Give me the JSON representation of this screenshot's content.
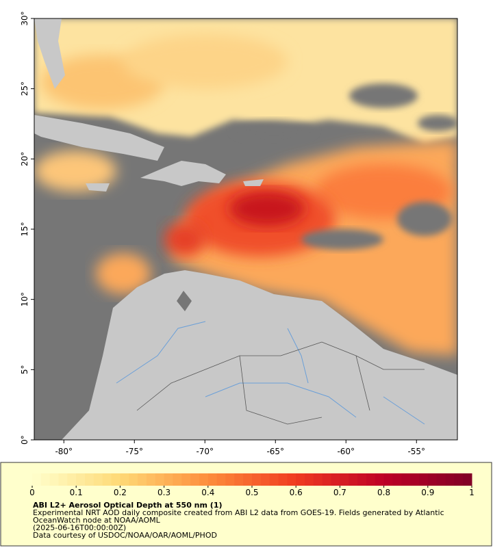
{
  "map": {
    "xlim": [
      -82.1,
      -52.1
    ],
    "ylim": [
      0,
      30
    ],
    "xticks": [
      {
        "value": -80,
        "label": "-80°"
      },
      {
        "value": -75,
        "label": "-75°"
      },
      {
        "value": -70,
        "label": "-70°"
      },
      {
        "value": -65,
        "label": "-65°"
      },
      {
        "value": -60,
        "label": "-60°"
      },
      {
        "value": -55,
        "label": "-55°"
      }
    ],
    "yticks": [
      {
        "value": 0,
        "label": "0°"
      },
      {
        "value": 5,
        "label": "5°"
      },
      {
        "value": 10,
        "label": "10°"
      },
      {
        "value": 15,
        "label": "15°"
      },
      {
        "value": 20,
        "label": "20°"
      },
      {
        "value": 25,
        "label": "25°"
      },
      {
        "value": 30,
        "label": "30°"
      }
    ]
  },
  "colorbar": {
    "lim": [
      0,
      1
    ],
    "ticks": [
      0,
      0.1,
      0.2,
      0.3,
      0.4,
      0.5,
      0.6,
      0.7,
      0.8,
      0.9,
      1
    ]
  },
  "caption": {
    "title": "ABI L2+ Aerosol Optical Depth at 550 nm (1)",
    "lines": [
      "Experimental NRT AOD daily composite created from ABI L2 data from GOES-19. Fields generated by Atlantic",
      "OceanWatch node at NOAA/AOML",
      "(2025-06-16T00:00:00Z)",
      "Data courtesy of USDOC/NOAA/OAR/AOML/PHOD"
    ]
  }
}
